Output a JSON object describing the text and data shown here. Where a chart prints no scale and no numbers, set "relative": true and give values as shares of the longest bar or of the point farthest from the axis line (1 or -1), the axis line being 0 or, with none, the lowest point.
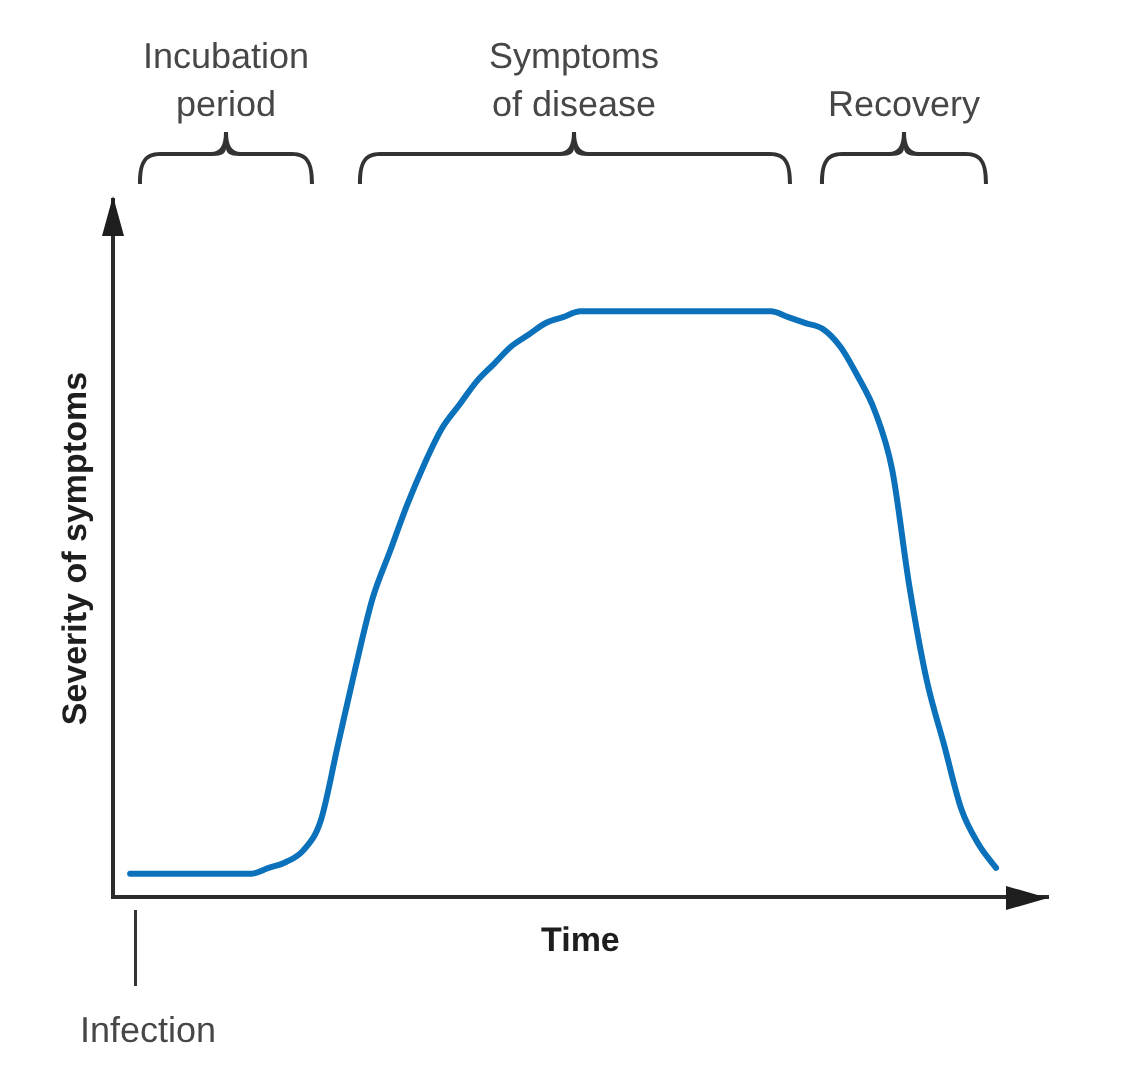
{
  "chart_data": {
    "type": "line",
    "xlabel": "Time",
    "ylabel": "Severity of symptoms",
    "annotations": [
      "Incubation period",
      "Symptoms of disease",
      "Recovery",
      "Infection"
    ],
    "relative": true,
    "tick_labels": false,
    "color": "#0a71ba",
    "categories": [
      null,
      null,
      null,
      null,
      null,
      null,
      null,
      null,
      null,
      null,
      null,
      null,
      null,
      null,
      null,
      null,
      null,
      null,
      null,
      null,
      null,
      null,
      null,
      null,
      null,
      null,
      null,
      null,
      null,
      null,
      null,
      null,
      null,
      null,
      null,
      null,
      null,
      null,
      null,
      null,
      null,
      null,
      null,
      null,
      null,
      null,
      null,
      null,
      null,
      null,
      null,
      null,
      null,
      null,
      null
    ],
    "values": [
      null,
      0.04,
      0.04,
      0.04,
      0.04,
      0.04,
      0.04,
      0.04,
      0.04,
      0.05,
      0.06,
      0.08,
      0.13,
      0.26,
      0.39,
      0.51,
      0.59,
      0.67,
      0.74,
      0.8,
      0.84,
      0.88,
      0.91,
      0.94,
      0.96,
      0.98,
      0.99,
      1,
      1,
      1,
      1,
      1,
      1,
      1,
      1,
      1,
      1,
      1,
      1,
      0.99,
      0.98,
      0.97,
      0.94,
      0.89,
      0.83,
      0.73,
      0.53,
      0.37,
      0.26,
      0.15,
      0.09,
      0.05,
      null,
      null,
      null
    ]
  }
}
